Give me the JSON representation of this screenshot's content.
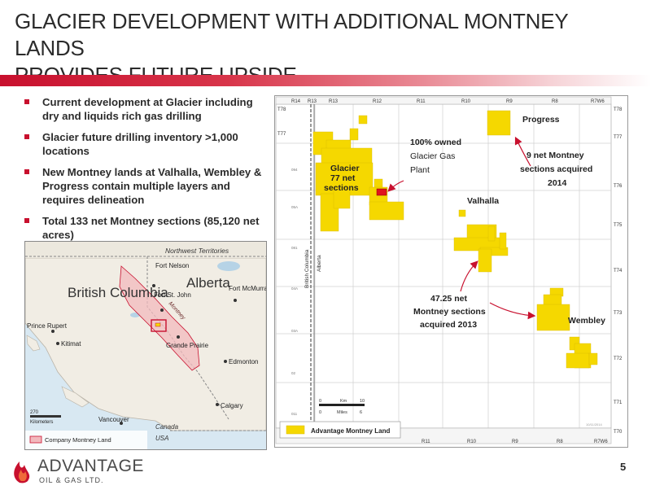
{
  "title_line1": "GLACIER DEVELOPMENT WITH ADDITIONAL MONTNEY LANDS",
  "title_line2": "PROVIDES FUTURE UPSIDE",
  "bullets": [
    "Current development at Glacier including dry and liquids rich gas drilling",
    "Glacier future drilling inventory >1,000 locations",
    "New Montney lands at Valhalla, Wembley & Progress contain multiple layers and requires delineation",
    "Total 133 net Montney sections (85,120 net acres)"
  ],
  "inset": {
    "northwest_territories": "Northwest Territories",
    "fort_nelson": "Fort Nelson",
    "british_columbia": "British Columbia",
    "alberta": "Alberta",
    "fort_st_john": "Fort St. John",
    "fort_mcmurray": "Fort McMurray",
    "montney": "Montney",
    "prince_rupert": "Prince Rupert",
    "kitimat": "Kitimat",
    "grande_prairie": "Grande Prairie",
    "edmonton": "Edmonton",
    "calgary": "Calgary",
    "vancouver": "Vancouver",
    "canada": "Canada",
    "usa": "USA",
    "scale_value": "270",
    "scale_unit": "Kilometers",
    "legend": "Company Montney Land"
  },
  "map": {
    "ranges_top": [
      "R14",
      "R13",
      "R13",
      "R12",
      "R11",
      "R10",
      "R9",
      "R8",
      "R7W6"
    ],
    "ranges_bottom": [
      "R11",
      "R10",
      "R9",
      "R8",
      "R7W6"
    ],
    "townships": [
      "T78",
      "T77",
      "T76",
      "T75",
      "T74",
      "T73",
      "T72",
      "T71",
      "T70"
    ],
    "left_townships": [
      "T78",
      "T77"
    ],
    "left_small": [
      "094",
      "05A",
      "081",
      "04A",
      "03A",
      "02",
      "011"
    ],
    "border_bc": "British Columbia",
    "border_ab": "Alberta",
    "glacier": "Glacier",
    "glacier_sections": "77 net",
    "glacier_sections2": "sections",
    "plant_line1": "100% owned",
    "plant_line2": "Glacier Gas",
    "plant_line3": "Plant",
    "progress": "Progress",
    "progress_note1": "9 net Montney",
    "progress_note2": "sections acquired",
    "progress_note3": "2014",
    "valhalla": "Valhalla",
    "acq_line1": "47.25 net",
    "acq_line2": "Montney sections",
    "acq_line3": "acquired 2013",
    "wembley": "Wembley",
    "scale_km": "Km",
    "scale_miles": "Miles",
    "scale_zero": "0",
    "scale_km_val": "10",
    "scale_mi_val": "6",
    "legend": "Advantage Montney Land",
    "date": "10/11/2014",
    "land_color": "#f5d800"
  },
  "page_number": "5",
  "logo": {
    "word": "ADVANTAGE",
    "sub": "OIL & GAS LTD."
  },
  "colors": {
    "accent": "#c8102e",
    "text": "#2b2b2b"
  }
}
